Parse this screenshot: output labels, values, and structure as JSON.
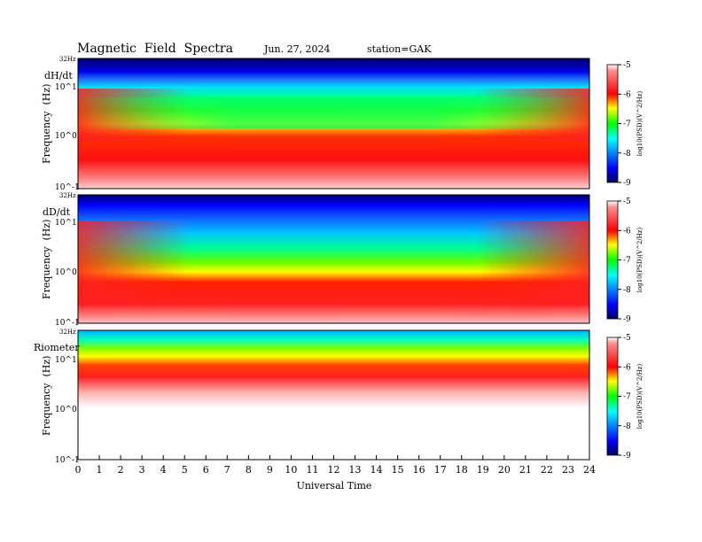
{
  "header": {
    "title": "Magnetic  Field  Spectra",
    "date": "Jun. 27, 2024",
    "station": "station=GAK"
  },
  "xaxis": {
    "label": "Universal Time",
    "ticks": [
      "0",
      "1",
      "2",
      "3",
      "4",
      "5",
      "6",
      "7",
      "8",
      "9",
      "10",
      "11",
      "12",
      "13",
      "14",
      "15",
      "16",
      "17",
      "18",
      "19",
      "20",
      "21",
      "22",
      "23",
      "24"
    ],
    "range": [
      0,
      24
    ]
  },
  "colorbar": {
    "ticks": [
      "-5",
      "-6",
      "-7",
      "-8",
      "-9"
    ],
    "label": "log10(PSD)(V^2/Hz)",
    "range": [
      -9,
      -5
    ],
    "colors": [
      "#000060",
      "#0000ff",
      "#00ffff",
      "#00ff00",
      "#ffff00",
      "#ff0000",
      "#ffffff"
    ]
  },
  "chart_data": [
    {
      "type": "heatmap",
      "panel": "dH/dt",
      "ylabel": "Frequency  (Hz)",
      "yticks": [
        "10^1",
        "10^0",
        "10^-1"
      ],
      "ymax_label": "32Hz",
      "yscale": "log",
      "ylim": [
        0.1,
        32
      ],
      "xlim": [
        0,
        24
      ],
      "colorbar_range": [
        -9,
        -5
      ]
    },
    {
      "type": "heatmap",
      "panel": "dD/dt",
      "ylabel": "Frequency  (Hz)",
      "yticks": [
        "10^1",
        "10^0",
        "10^-1"
      ],
      "ymax_label": "32Hz",
      "yscale": "log",
      "ylim": [
        0.1,
        32
      ],
      "xlim": [
        0,
        24
      ],
      "colorbar_range": [
        -9,
        -5
      ]
    },
    {
      "type": "heatmap",
      "panel": "Riometer",
      "ylabel": "Frequency  (Hz)",
      "yticks": [
        "10^1",
        "10^0",
        "10^-1"
      ],
      "ymax_label": "32Hz",
      "yscale": "log",
      "ylim": [
        0.1,
        32
      ],
      "xlim": [
        0,
        24
      ],
      "colorbar_range": [
        -9,
        -5
      ]
    }
  ]
}
